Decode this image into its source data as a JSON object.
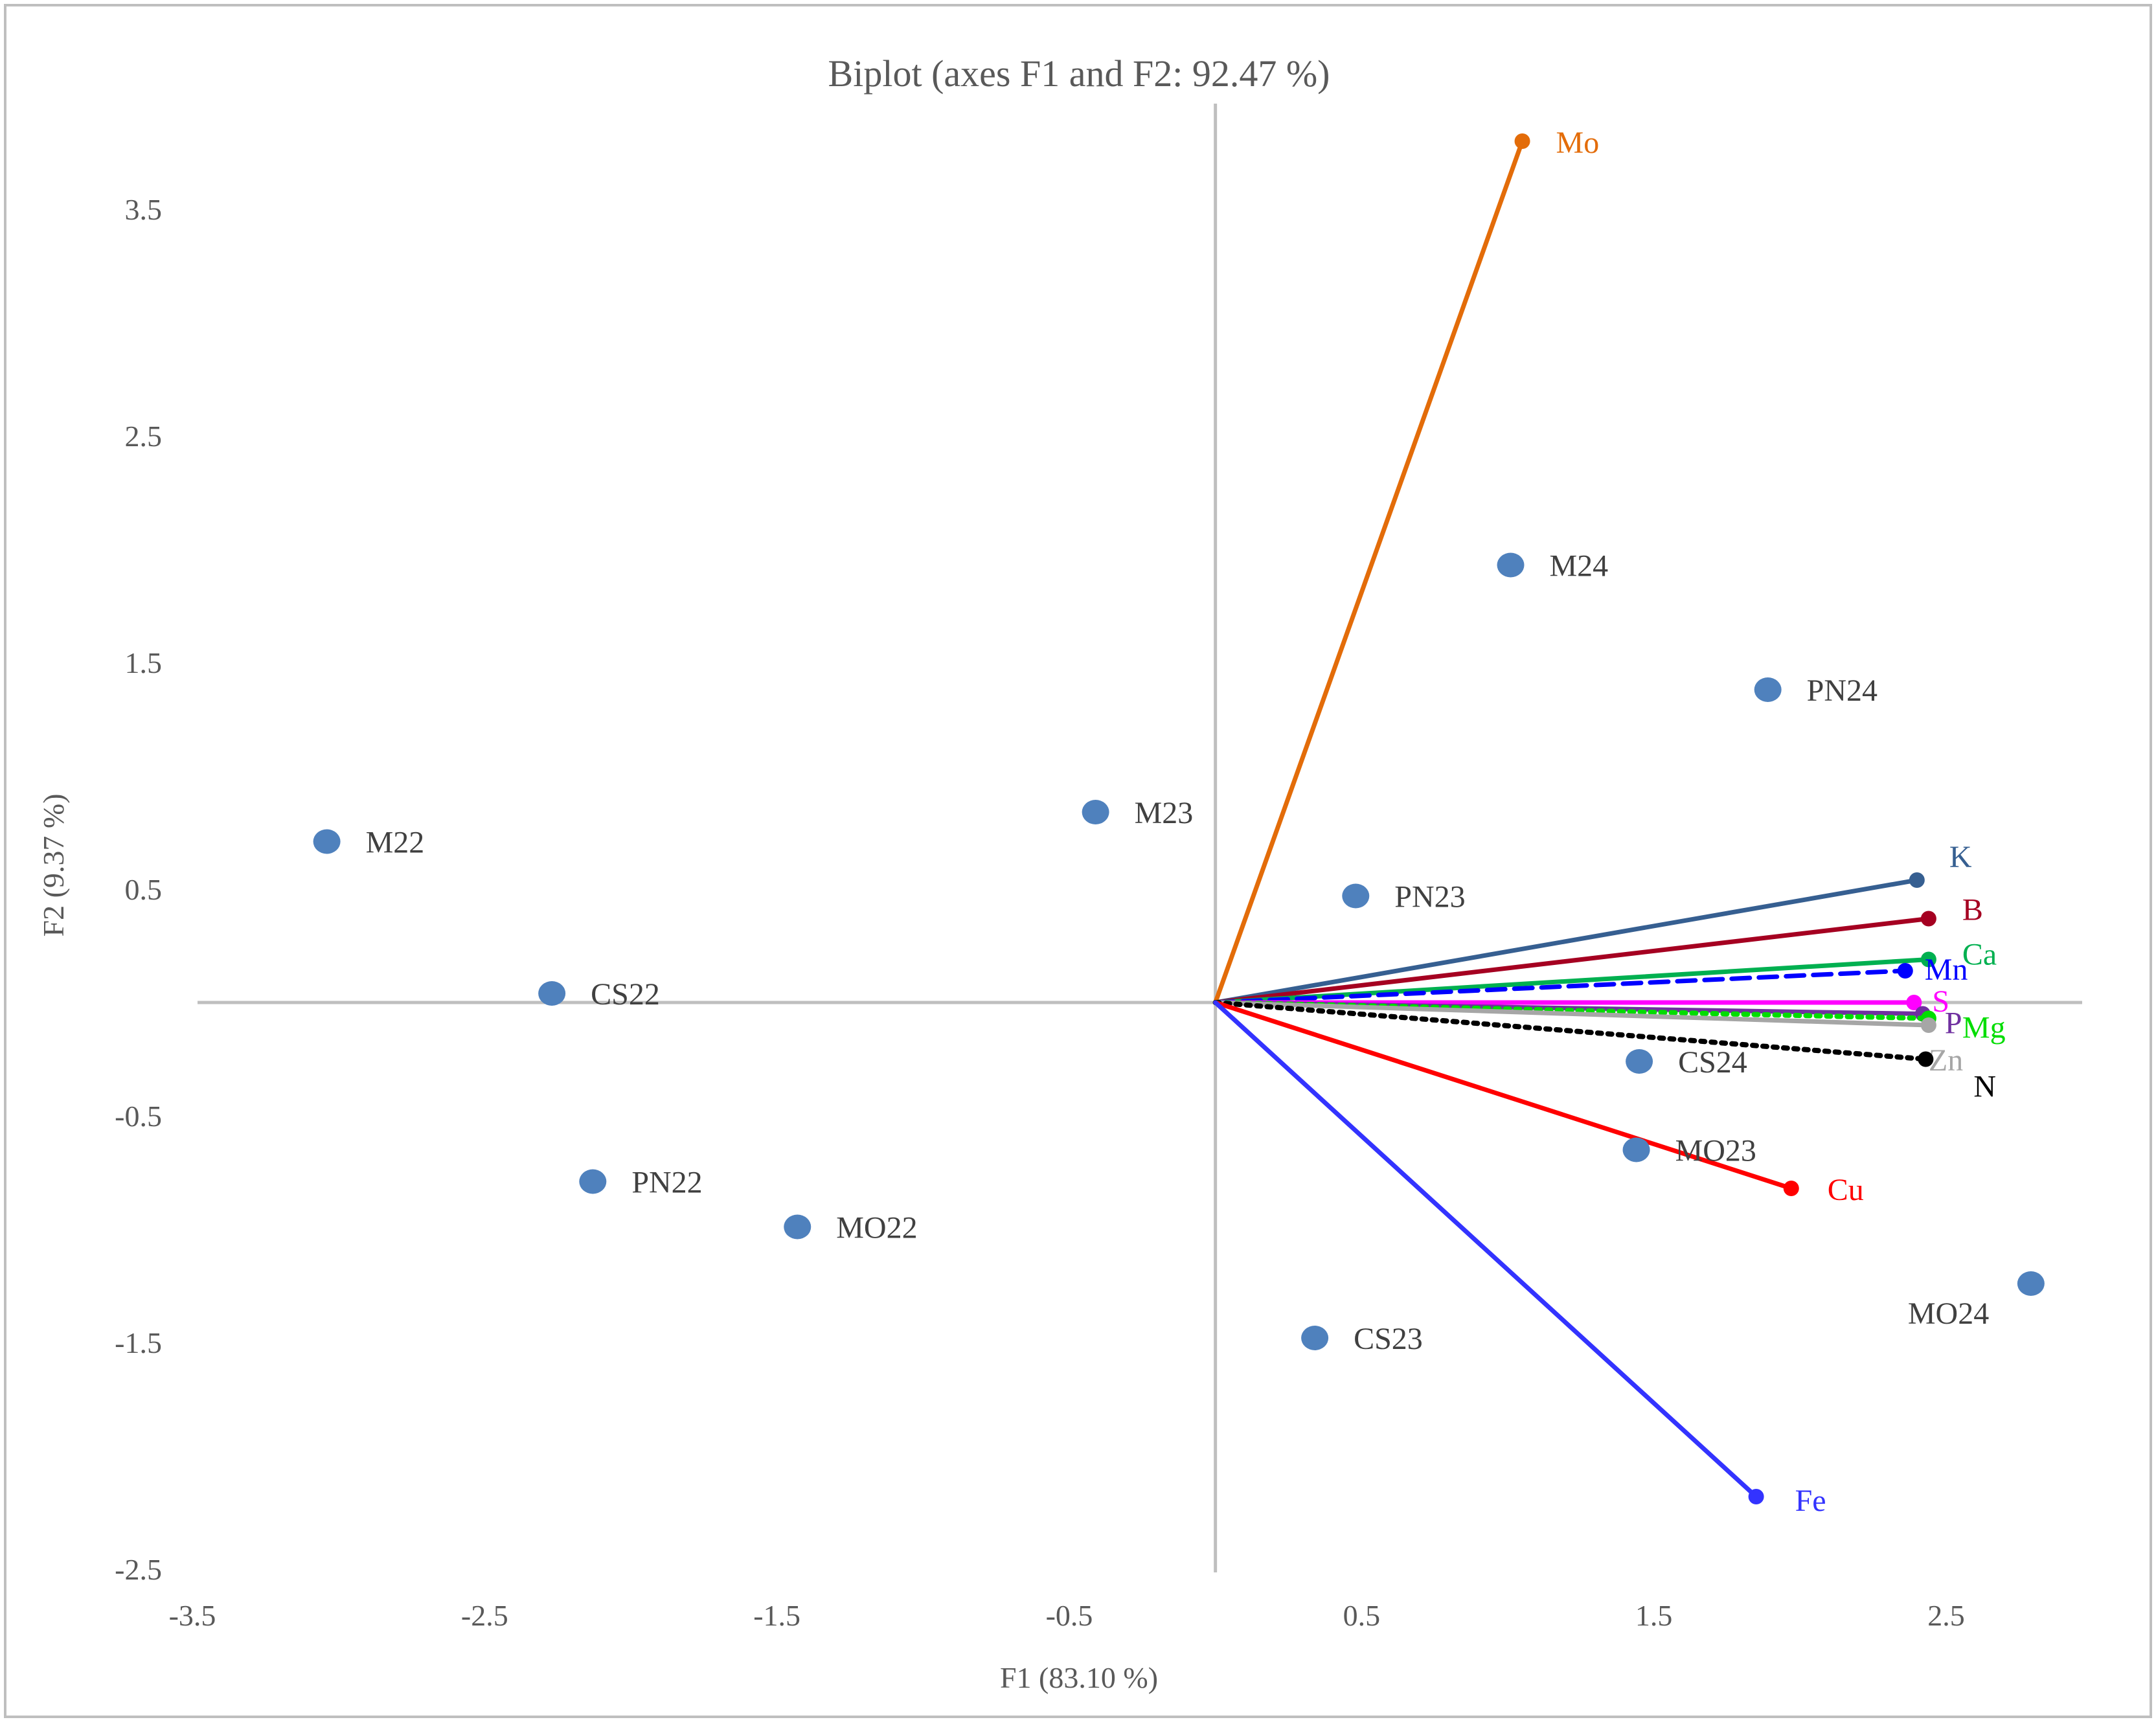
{
  "chart_data": {
    "type": "scatter",
    "subtype": "pca-biplot",
    "title": "Biplot (axes F1 and F2: 92.47 %)",
    "xlabel": "F1 (83.10 %)",
    "ylabel": "F2 (9.37 %)",
    "xlim": [
      -3.5,
      3.0
    ],
    "ylim": [
      -2.5,
      3.9
    ],
    "xticks": [
      -3.5,
      -2.5,
      -1.5,
      -0.5,
      0.5,
      1.5,
      2.5
    ],
    "xtick_labels": [
      "-3.5",
      "-2.5",
      "-1.5",
      "-0.5",
      "0.5",
      "1.5",
      "2.5"
    ],
    "yticks": [
      3.5,
      2.5,
      1.5,
      0.5,
      -0.5,
      -1.5,
      -2.5
    ],
    "ytick_labels": [
      "3.5",
      "2.5",
      "1.5",
      "0.5",
      "-0.5",
      "-1.5",
      "-2.5"
    ],
    "grid": false,
    "observations": {
      "color": "#4f81bd",
      "points": [
        {
          "label": "M22",
          "x": -3.04,
          "y": 0.71
        },
        {
          "label": "CS22",
          "x": -2.27,
          "y": 0.04
        },
        {
          "label": "PN22",
          "x": -2.13,
          "y": -0.79
        },
        {
          "label": "MO22",
          "x": -1.43,
          "y": -0.99
        },
        {
          "label": "M23",
          "x": -0.41,
          "y": 0.84
        },
        {
          "label": "PN23",
          "x": 0.48,
          "y": 0.47
        },
        {
          "label": "CS23",
          "x": 0.34,
          "y": -1.48
        },
        {
          "label": "M24",
          "x": 1.01,
          "y": 1.93
        },
        {
          "label": "PN24",
          "x": 1.89,
          "y": 1.38
        },
        {
          "label": "CS24",
          "x": 1.45,
          "y": -0.26
        },
        {
          "label": "MO23",
          "x": 1.44,
          "y": -0.65
        },
        {
          "label": "MO24",
          "x": 2.79,
          "y": -1.24
        }
      ]
    },
    "variables": [
      {
        "label": "Mo",
        "x": 1.05,
        "y": 3.8,
        "color": "#e36c09",
        "style": "solid"
      },
      {
        "label": "K",
        "x": 2.4,
        "y": 0.54,
        "color": "#365f91",
        "style": "solid"
      },
      {
        "label": "B",
        "x": 2.44,
        "y": 0.37,
        "color": "#a50021",
        "style": "solid"
      },
      {
        "label": "Ca",
        "x": 2.44,
        "y": 0.19,
        "color": "#00b050",
        "style": "solid"
      },
      {
        "label": "Mn",
        "x": 2.36,
        "y": 0.14,
        "color": "#0000ff",
        "style": "dashed"
      },
      {
        "label": "S",
        "x": 2.39,
        "y": 0.0,
        "color": "#ff00ff",
        "style": "solid"
      },
      {
        "label": "P",
        "x": 2.42,
        "y": -0.05,
        "color": "#7030a0",
        "style": "solid"
      },
      {
        "label": "Mg",
        "x": 2.44,
        "y": -0.07,
        "color": "#00dd00",
        "style": "dotted"
      },
      {
        "label": "Zn",
        "x": 2.44,
        "y": -0.1,
        "color": "#a6a6a6",
        "style": "solid"
      },
      {
        "label": "N",
        "x": 2.43,
        "y": -0.25,
        "color": "#000000",
        "style": "dotted"
      },
      {
        "label": "Cu",
        "x": 1.97,
        "y": -0.82,
        "color": "#ff0000",
        "style": "solid"
      },
      {
        "label": "Fe",
        "x": 1.85,
        "y": -2.18,
        "color": "#3333ff",
        "style": "solid"
      }
    ]
  }
}
